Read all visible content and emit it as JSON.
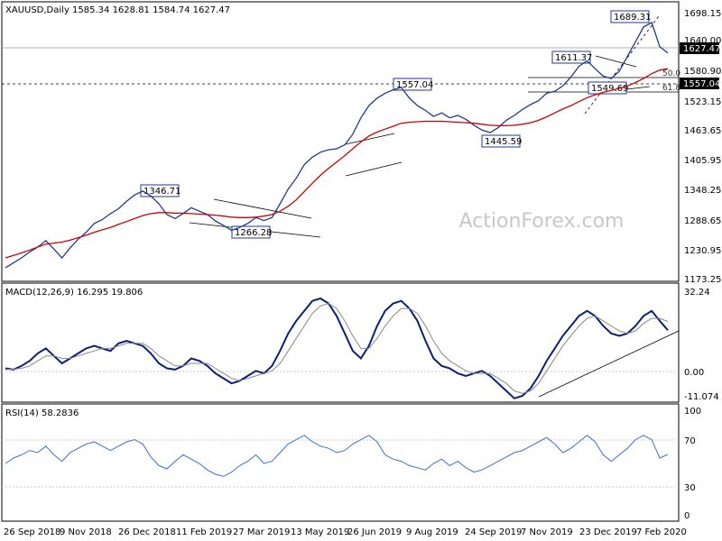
{
  "chart_data": [
    {
      "type": "candlestick",
      "title": "XAUUSD,Daily  1585.34 1628.81 1584.74 1627.47",
      "watermark": "ActionForex.com",
      "x_labels": [
        "26 Sep 2018",
        "9 Nov 2018",
        "26 Dec 2018",
        "11 Feb 2019",
        "27 Mar 2019",
        "13 May 2019",
        "26 Jun 2019",
        "9 Aug 2019",
        "24 Sep 2019",
        "7 Nov 2019",
        "23 Dec 2019",
        "7 Feb 2020"
      ],
      "y_ticks": [
        "1698.15",
        "1640.00",
        "1580.90",
        "1523.15",
        "1463.65",
        "1405.95",
        "1348.25",
        "1288.65",
        "1230.95",
        "1173.25"
      ],
      "ylim": [
        1173.25,
        1698.15
      ],
      "current_price": "1627.47",
      "level_line_price": "1557.04",
      "annotations": [
        "1689.31",
        "1611.37",
        "1557.04",
        "1549.69",
        "1445.59",
        "1346.71",
        "1266.28"
      ],
      "fib_labels": [
        "50.0",
        "61.8"
      ],
      "series": [
        {
          "name": "price",
          "values": [
            1190,
            1200,
            1210,
            1222,
            1232,
            1245,
            1228,
            1210,
            1230,
            1248,
            1262,
            1280,
            1288,
            1300,
            1310,
            1325,
            1338,
            1346,
            1336,
            1320,
            1298,
            1290,
            1300,
            1312,
            1305,
            1298,
            1285,
            1276,
            1266,
            1272,
            1280,
            1292,
            1286,
            1292,
            1320,
            1350,
            1372,
            1400,
            1415,
            1425,
            1430,
            1432,
            1440,
            1462,
            1495,
            1520,
            1535,
            1545,
            1552,
            1557,
            1535,
            1520,
            1510,
            1498,
            1505,
            1495,
            1500,
            1492,
            1480,
            1470,
            1465,
            1475,
            1490,
            1500,
            1512,
            1522,
            1530,
            1545,
            1549,
            1560,
            1578,
            1600,
            1611,
            1595,
            1580,
            1575,
            1590,
            1620,
            1650,
            1680,
            1689,
            1640,
            1627
          ]
        },
        {
          "name": "ma",
          "values": [
            1210,
            1215,
            1220,
            1226,
            1232,
            1238,
            1240,
            1242,
            1246,
            1251,
            1256,
            1262,
            1267,
            1272,
            1278,
            1284,
            1290,
            1296,
            1300,
            1302,
            1302,
            1301,
            1301,
            1300,
            1299,
            1298,
            1297,
            1295,
            1293,
            1292,
            1292,
            1293,
            1295,
            1298,
            1305,
            1315,
            1328,
            1345,
            1362,
            1378,
            1392,
            1405,
            1418,
            1432,
            1446,
            1458,
            1466,
            1472,
            1478,
            1484,
            1486,
            1487,
            1488,
            1488,
            1488,
            1487,
            1486,
            1485,
            1484,
            1482,
            1480,
            1479,
            1479,
            1480,
            1482,
            1485,
            1490,
            1497,
            1505,
            1513,
            1520,
            1528,
            1536,
            1542,
            1547,
            1551,
            1555,
            1560,
            1567,
            1575,
            1585,
            1592,
            1595
          ]
        }
      ]
    },
    {
      "type": "line",
      "title": "MACD(12,26,9) 16.295 19.806",
      "y_ticks": [
        "32.24",
        "0.00",
        "-11.074"
      ],
      "ylim": [
        -11.074,
        32.24
      ],
      "series": [
        {
          "name": "macd",
          "values": [
            1,
            0.5,
            2,
            4,
            7,
            9,
            6,
            3,
            5,
            7,
            9,
            10,
            9,
            8,
            11,
            12,
            11,
            10,
            7,
            3,
            1,
            0.5,
            2,
            5,
            4,
            2,
            -1,
            -3,
            -5,
            -4,
            -2,
            0,
            -1,
            2,
            8,
            15,
            20,
            24,
            28,
            29,
            27,
            22,
            15,
            8,
            5,
            10,
            18,
            24,
            27,
            28,
            25,
            20,
            12,
            5,
            2,
            1,
            -1,
            -2,
            -1,
            0,
            -2,
            -5,
            -8,
            -11,
            -10,
            -7,
            -2,
            4,
            9,
            14,
            18,
            22,
            24,
            22,
            18,
            15,
            14,
            15,
            18,
            22,
            24,
            20,
            16.3
          ]
        },
        {
          "name": "signal",
          "values": [
            0.5,
            0.7,
            1,
            2,
            4,
            6,
            6,
            5,
            5,
            6,
            7,
            8,
            9,
            9,
            10,
            11,
            11,
            11,
            9,
            6,
            4,
            2,
            2,
            3,
            3,
            3,
            1,
            -1,
            -3,
            -4,
            -3,
            -2,
            -1,
            0,
            3,
            8,
            13,
            18,
            23,
            26,
            27,
            25,
            20,
            14,
            9,
            9,
            13,
            18,
            22,
            25,
            25,
            23,
            18,
            12,
            7,
            4,
            2,
            0,
            -1,
            -1,
            -1,
            -3,
            -5,
            -8,
            -9,
            -8,
            -5,
            0,
            5,
            10,
            14,
            18,
            21,
            22,
            20,
            18,
            16,
            15,
            16,
            19,
            21,
            21,
            19.8
          ]
        }
      ]
    },
    {
      "type": "line",
      "title": "RSI(14) 58.2836",
      "y_ticks": [
        "100",
        "70",
        "30",
        "0"
      ],
      "ylim": [
        0,
        100
      ],
      "series": [
        {
          "name": "rsi",
          "values": [
            50,
            55,
            58,
            62,
            60,
            66,
            58,
            52,
            60,
            64,
            68,
            70,
            66,
            62,
            66,
            70,
            72,
            68,
            56,
            48,
            45,
            52,
            58,
            54,
            50,
            44,
            40,
            38,
            42,
            48,
            52,
            58,
            50,
            52,
            60,
            68,
            72,
            76,
            70,
            66,
            64,
            60,
            62,
            68,
            72,
            76,
            70,
            58,
            54,
            52,
            48,
            46,
            44,
            50,
            54,
            48,
            52,
            46,
            42,
            44,
            48,
            52,
            56,
            60,
            62,
            66,
            70,
            74,
            68,
            60,
            64,
            70,
            76,
            70,
            58,
            52,
            58,
            64,
            72,
            76,
            72,
            55,
            58.3
          ]
        }
      ]
    }
  ]
}
